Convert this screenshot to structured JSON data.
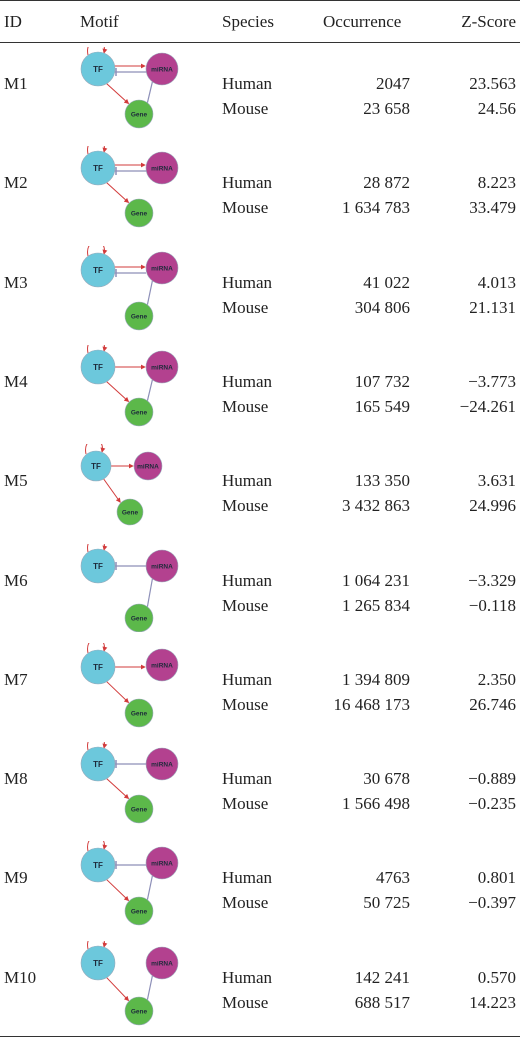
{
  "headers": {
    "id": "ID",
    "motif": "Motif",
    "species": "Species",
    "occurrence": "Occurrence",
    "zscore": "Z-Score"
  },
  "node_labels": {
    "tf": "TF",
    "mirna": "miRNA",
    "gene": "Gene"
  },
  "colors": {
    "tf": "#6cc8dc",
    "mirna": "#b3418f",
    "gene": "#5cb84a",
    "edge_red": "#d23b3b",
    "edge_gray": "#8d8fb8"
  },
  "rows": [
    {
      "id": "M1",
      "sp1": "Human",
      "sp2": "Mouse",
      "oc1": "2047",
      "oc2": "23 658",
      "z1": "23.563",
      "z2": "24.56"
    },
    {
      "id": "M2",
      "sp1": "Human",
      "sp2": "Mouse",
      "oc1": "28 872",
      "oc2": "1 634 783",
      "z1": "8.223",
      "z2": "33.479"
    },
    {
      "id": "M3",
      "sp1": "Human",
      "sp2": "Mouse",
      "oc1": "41 022",
      "oc2": "304 806",
      "z1": "4.013",
      "z2": "21.131"
    },
    {
      "id": "M4",
      "sp1": "Human",
      "sp2": "Mouse",
      "oc1": "107 732",
      "oc2": "165 549",
      "z1": "−3.773",
      "z2": "−24.261"
    },
    {
      "id": "M5",
      "sp1": "Human",
      "sp2": "Mouse",
      "oc1": "133 350",
      "oc2": "3 432 863",
      "z1": "3.631",
      "z2": "24.996"
    },
    {
      "id": "M6",
      "sp1": "Human",
      "sp2": "Mouse",
      "oc1": "1 064 231",
      "oc2": "1 265 834",
      "z1": "−3.329",
      "z2": "−0.118"
    },
    {
      "id": "M7",
      "sp1": "Human",
      "sp2": "Mouse",
      "oc1": "1 394 809",
      "oc2": "16 468 173",
      "z1": "2.350",
      "z2": "26.746"
    },
    {
      "id": "M8",
      "sp1": "Human",
      "sp2": "Mouse",
      "oc1": "30 678",
      "oc2": "1 566 498",
      "z1": "−0.889",
      "z2": "−0.235"
    },
    {
      "id": "M9",
      "sp1": "Human",
      "sp2": "Mouse",
      "oc1": "4763",
      "oc2": "50 725",
      "z1": "0.801",
      "z2": "−0.397"
    },
    {
      "id": "M10",
      "sp1": "Human",
      "sp2": "Mouse",
      "oc1": "142 241",
      "oc2": "688 517",
      "z1": "0.570",
      "z2": "14.223"
    }
  ]
}
